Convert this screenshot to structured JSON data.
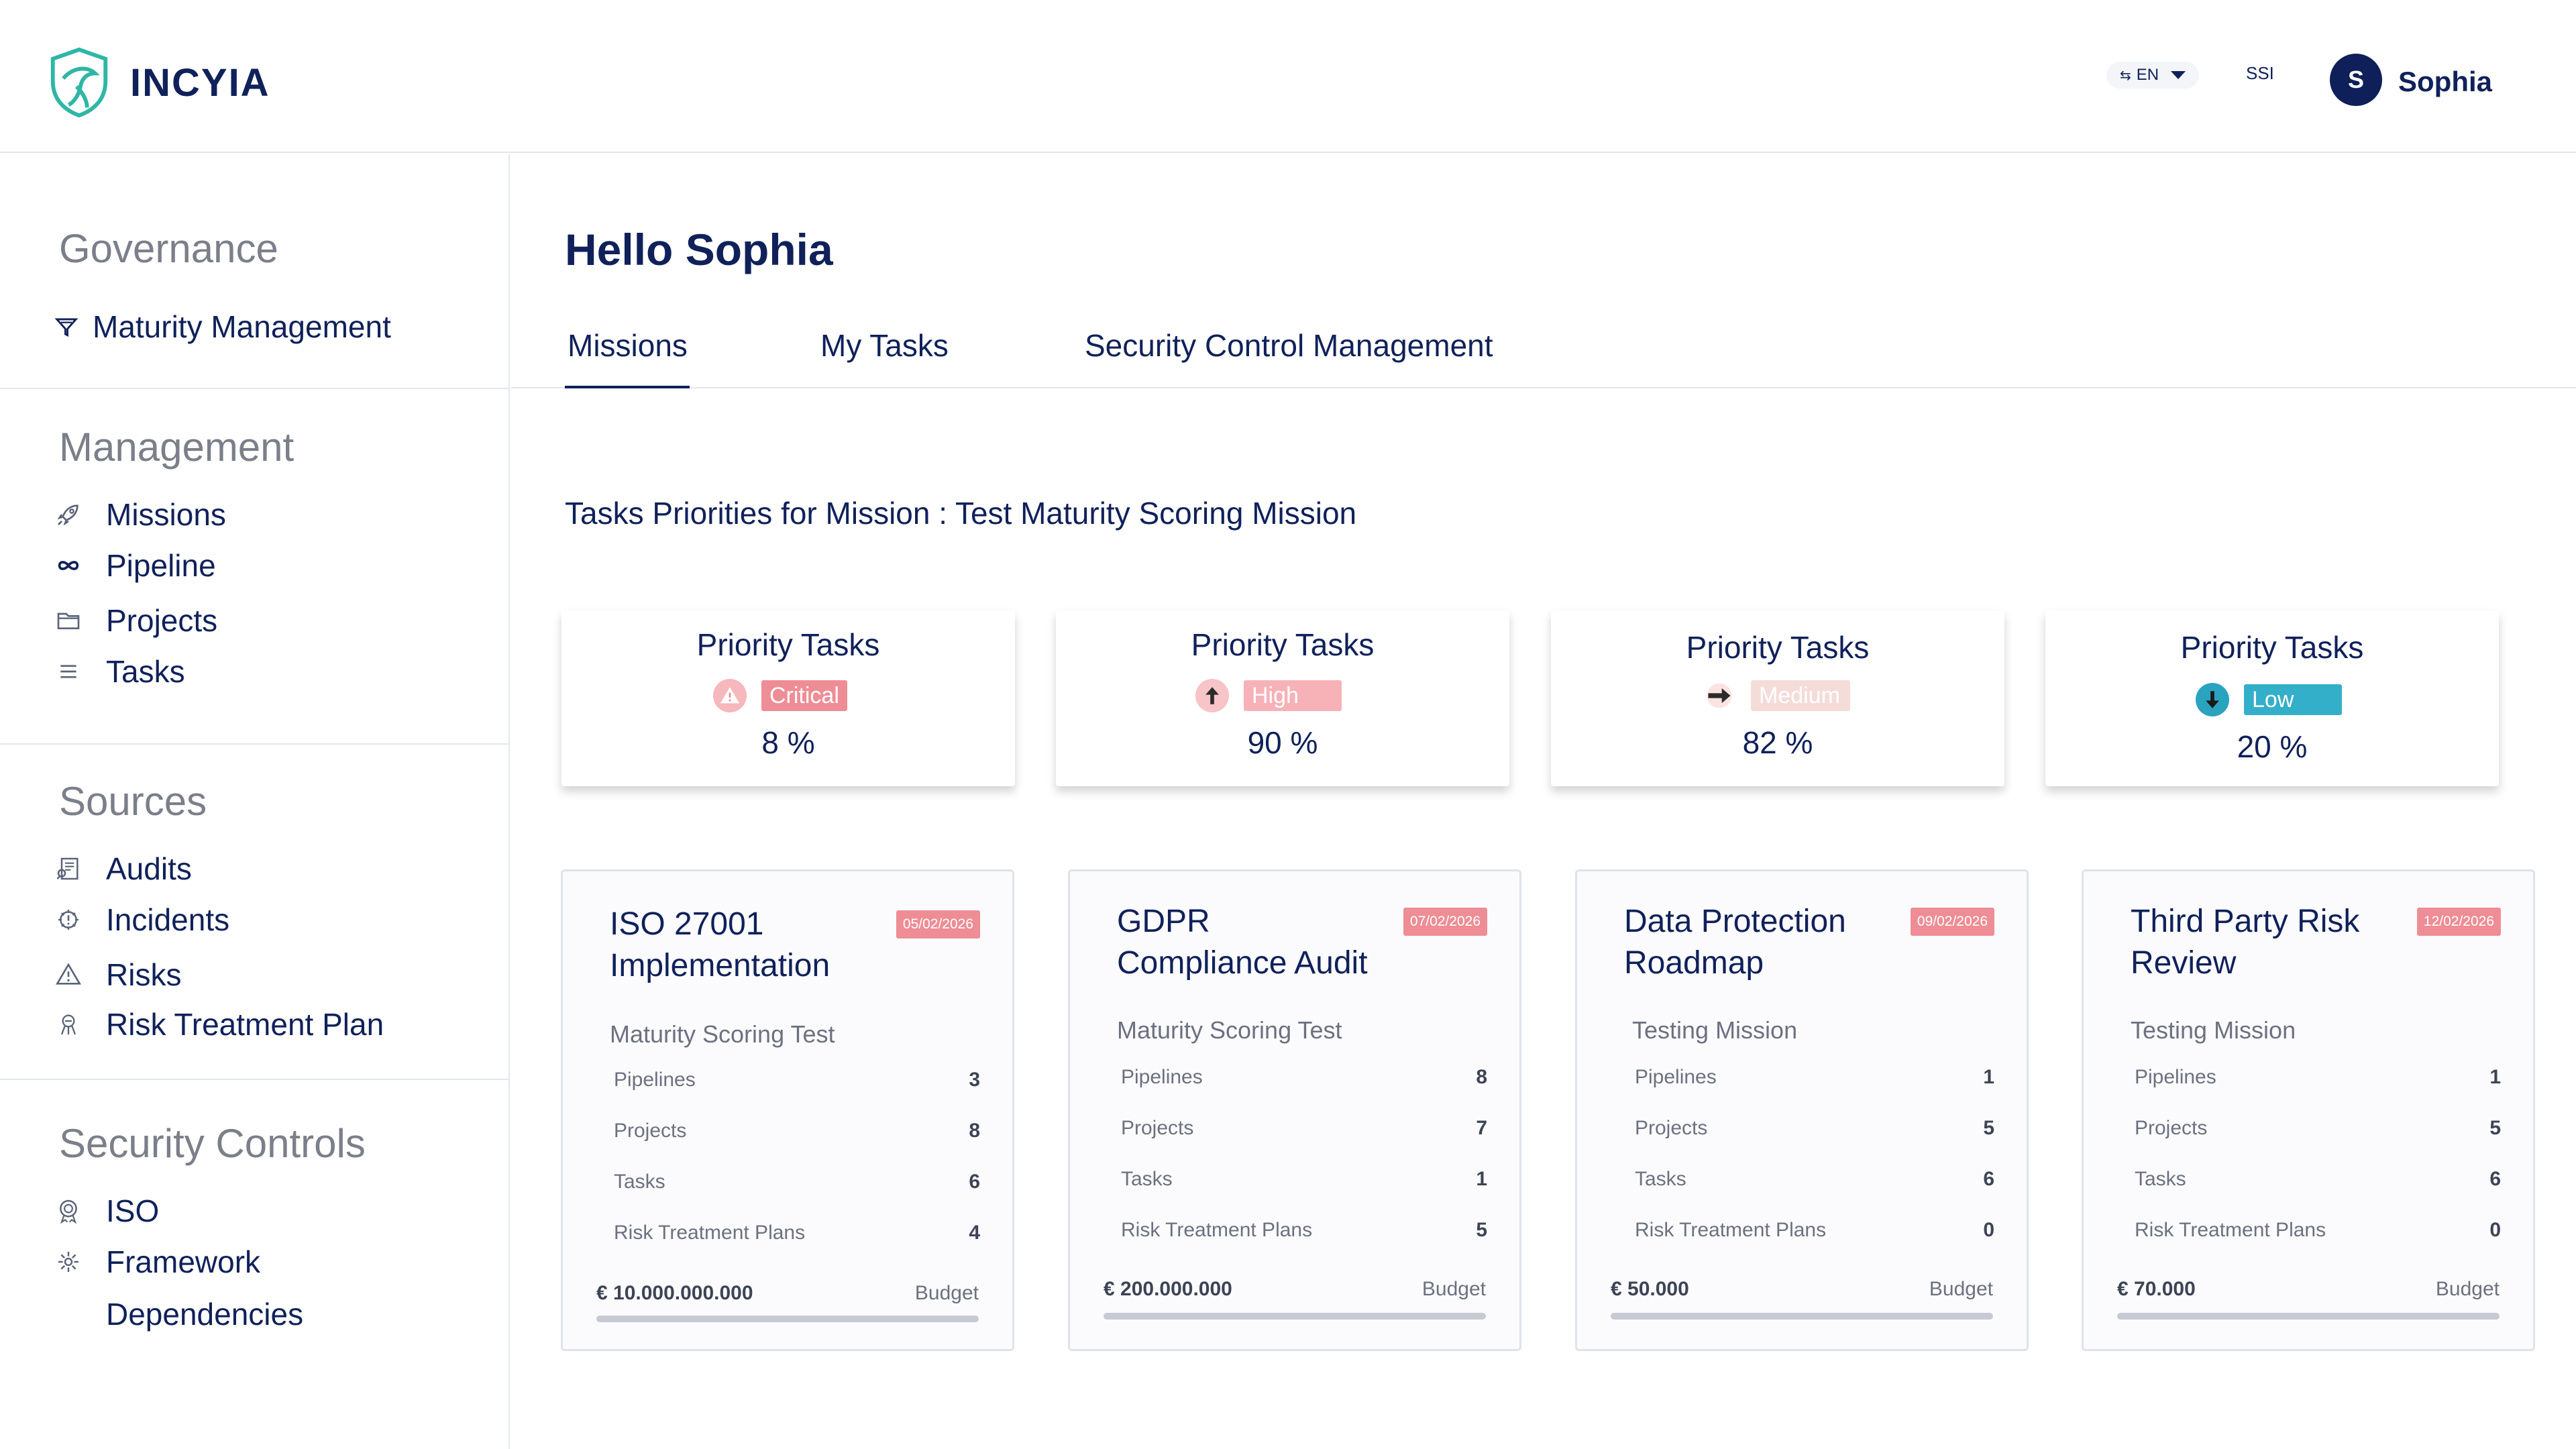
{
  "app": {
    "name": "INCYIA"
  },
  "header": {
    "lang": "EN",
    "ssi": "SSI",
    "user_initial": "S",
    "user_name": "Sophia"
  },
  "sidebar": {
    "sections": [
      {
        "title": "Governance",
        "items": [
          {
            "label": "Maturity Management",
            "icon": "funnel-icon"
          }
        ]
      },
      {
        "title": "Management",
        "items": [
          {
            "label": "Missions",
            "icon": "rocket-icon"
          },
          {
            "label": "Pipeline",
            "icon": "infinity-icon"
          },
          {
            "label": "Projects",
            "icon": "folder-icon"
          },
          {
            "label": "Tasks",
            "icon": "list-icon"
          }
        ]
      },
      {
        "title": "Sources",
        "items": [
          {
            "label": "Audits",
            "icon": "audit-icon"
          },
          {
            "label": "Incidents",
            "icon": "incident-icon"
          },
          {
            "label": "Risks",
            "icon": "warning-icon"
          },
          {
            "label": "Risk Treatment Plan",
            "icon": "treatment-icon"
          }
        ]
      },
      {
        "title": "Security Controls",
        "items": [
          {
            "label": "ISO",
            "icon": "iso-icon"
          },
          {
            "label": "Framework",
            "icon": "framework-icon"
          },
          {
            "label": "Dependencies",
            "icon": ""
          }
        ]
      }
    ]
  },
  "main": {
    "greeting": "Hello Sophia",
    "tabs": [
      {
        "label": "Missions",
        "active": true
      },
      {
        "label": "My Tasks"
      },
      {
        "label": "Security Control Management"
      }
    ],
    "mission_title": "Tasks Priorities for Mission : Test Maturity Scoring Mission",
    "priority_cards": [
      {
        "title": "Priority Tasks",
        "badge": "Critical",
        "badge_color": "#ee8d95",
        "icon_bg": "#f6b7bd",
        "percent": "8 %"
      },
      {
        "title": "Priority Tasks",
        "badge": "High",
        "badge_color": "#f7b2b8",
        "icon_bg": "#f7c4c8",
        "percent": "90 %"
      },
      {
        "title": "Priority Tasks",
        "badge": "Medium",
        "badge_color": "#f4dcd9",
        "icon_bg": "#ffffff",
        "percent": "82 %"
      },
      {
        "title": "Priority Tasks",
        "badge": "Low",
        "badge_color": "#34afc9",
        "icon_bg": "#2aa3bf",
        "percent": "20 %"
      }
    ],
    "mission_cards": [
      {
        "title": "ISO 27001 Implementation",
        "date": "05/02/2026",
        "subtitle": "Maturity Scoring Test",
        "rows": [
          {
            "label": "Pipelines",
            "value": "3"
          },
          {
            "label": "Projects",
            "value": "8"
          },
          {
            "label": "Tasks",
            "value": "6"
          },
          {
            "label": "Risk Treatment Plans",
            "value": "4"
          }
        ],
        "budget": "€ 10.000.000.000",
        "budget_label": "Budget"
      },
      {
        "title": "GDPR Compliance Audit",
        "date": "07/02/2026",
        "subtitle": "Maturity Scoring Test",
        "rows": [
          {
            "label": "Pipelines",
            "value": "8"
          },
          {
            "label": "Projects",
            "value": "7"
          },
          {
            "label": "Tasks",
            "value": "1"
          },
          {
            "label": "Risk Treatment Plans",
            "value": "5"
          }
        ],
        "budget": "€ 200.000.000",
        "budget_label": "Budget"
      },
      {
        "title": "Data Protection Roadmap",
        "date": "09/02/2026",
        "subtitle": "Testing Mission",
        "rows": [
          {
            "label": "Pipelines",
            "value": "1"
          },
          {
            "label": "Projects",
            "value": "5"
          },
          {
            "label": "Tasks",
            "value": "6"
          },
          {
            "label": "Risk Treatment Plans",
            "value": "0"
          }
        ],
        "budget": "€ 50.000",
        "budget_label": "Budget"
      },
      {
        "title": "Third Party Risk Review",
        "date": "12/02/2026",
        "subtitle": "Testing Mission",
        "rows": [
          {
            "label": "Pipelines",
            "value": "1"
          },
          {
            "label": "Projects",
            "value": "5"
          },
          {
            "label": "Tasks",
            "value": "6"
          },
          {
            "label": "Risk Treatment Plans",
            "value": "0"
          }
        ],
        "budget": "€ 70.000",
        "budget_label": "Budget"
      }
    ]
  }
}
